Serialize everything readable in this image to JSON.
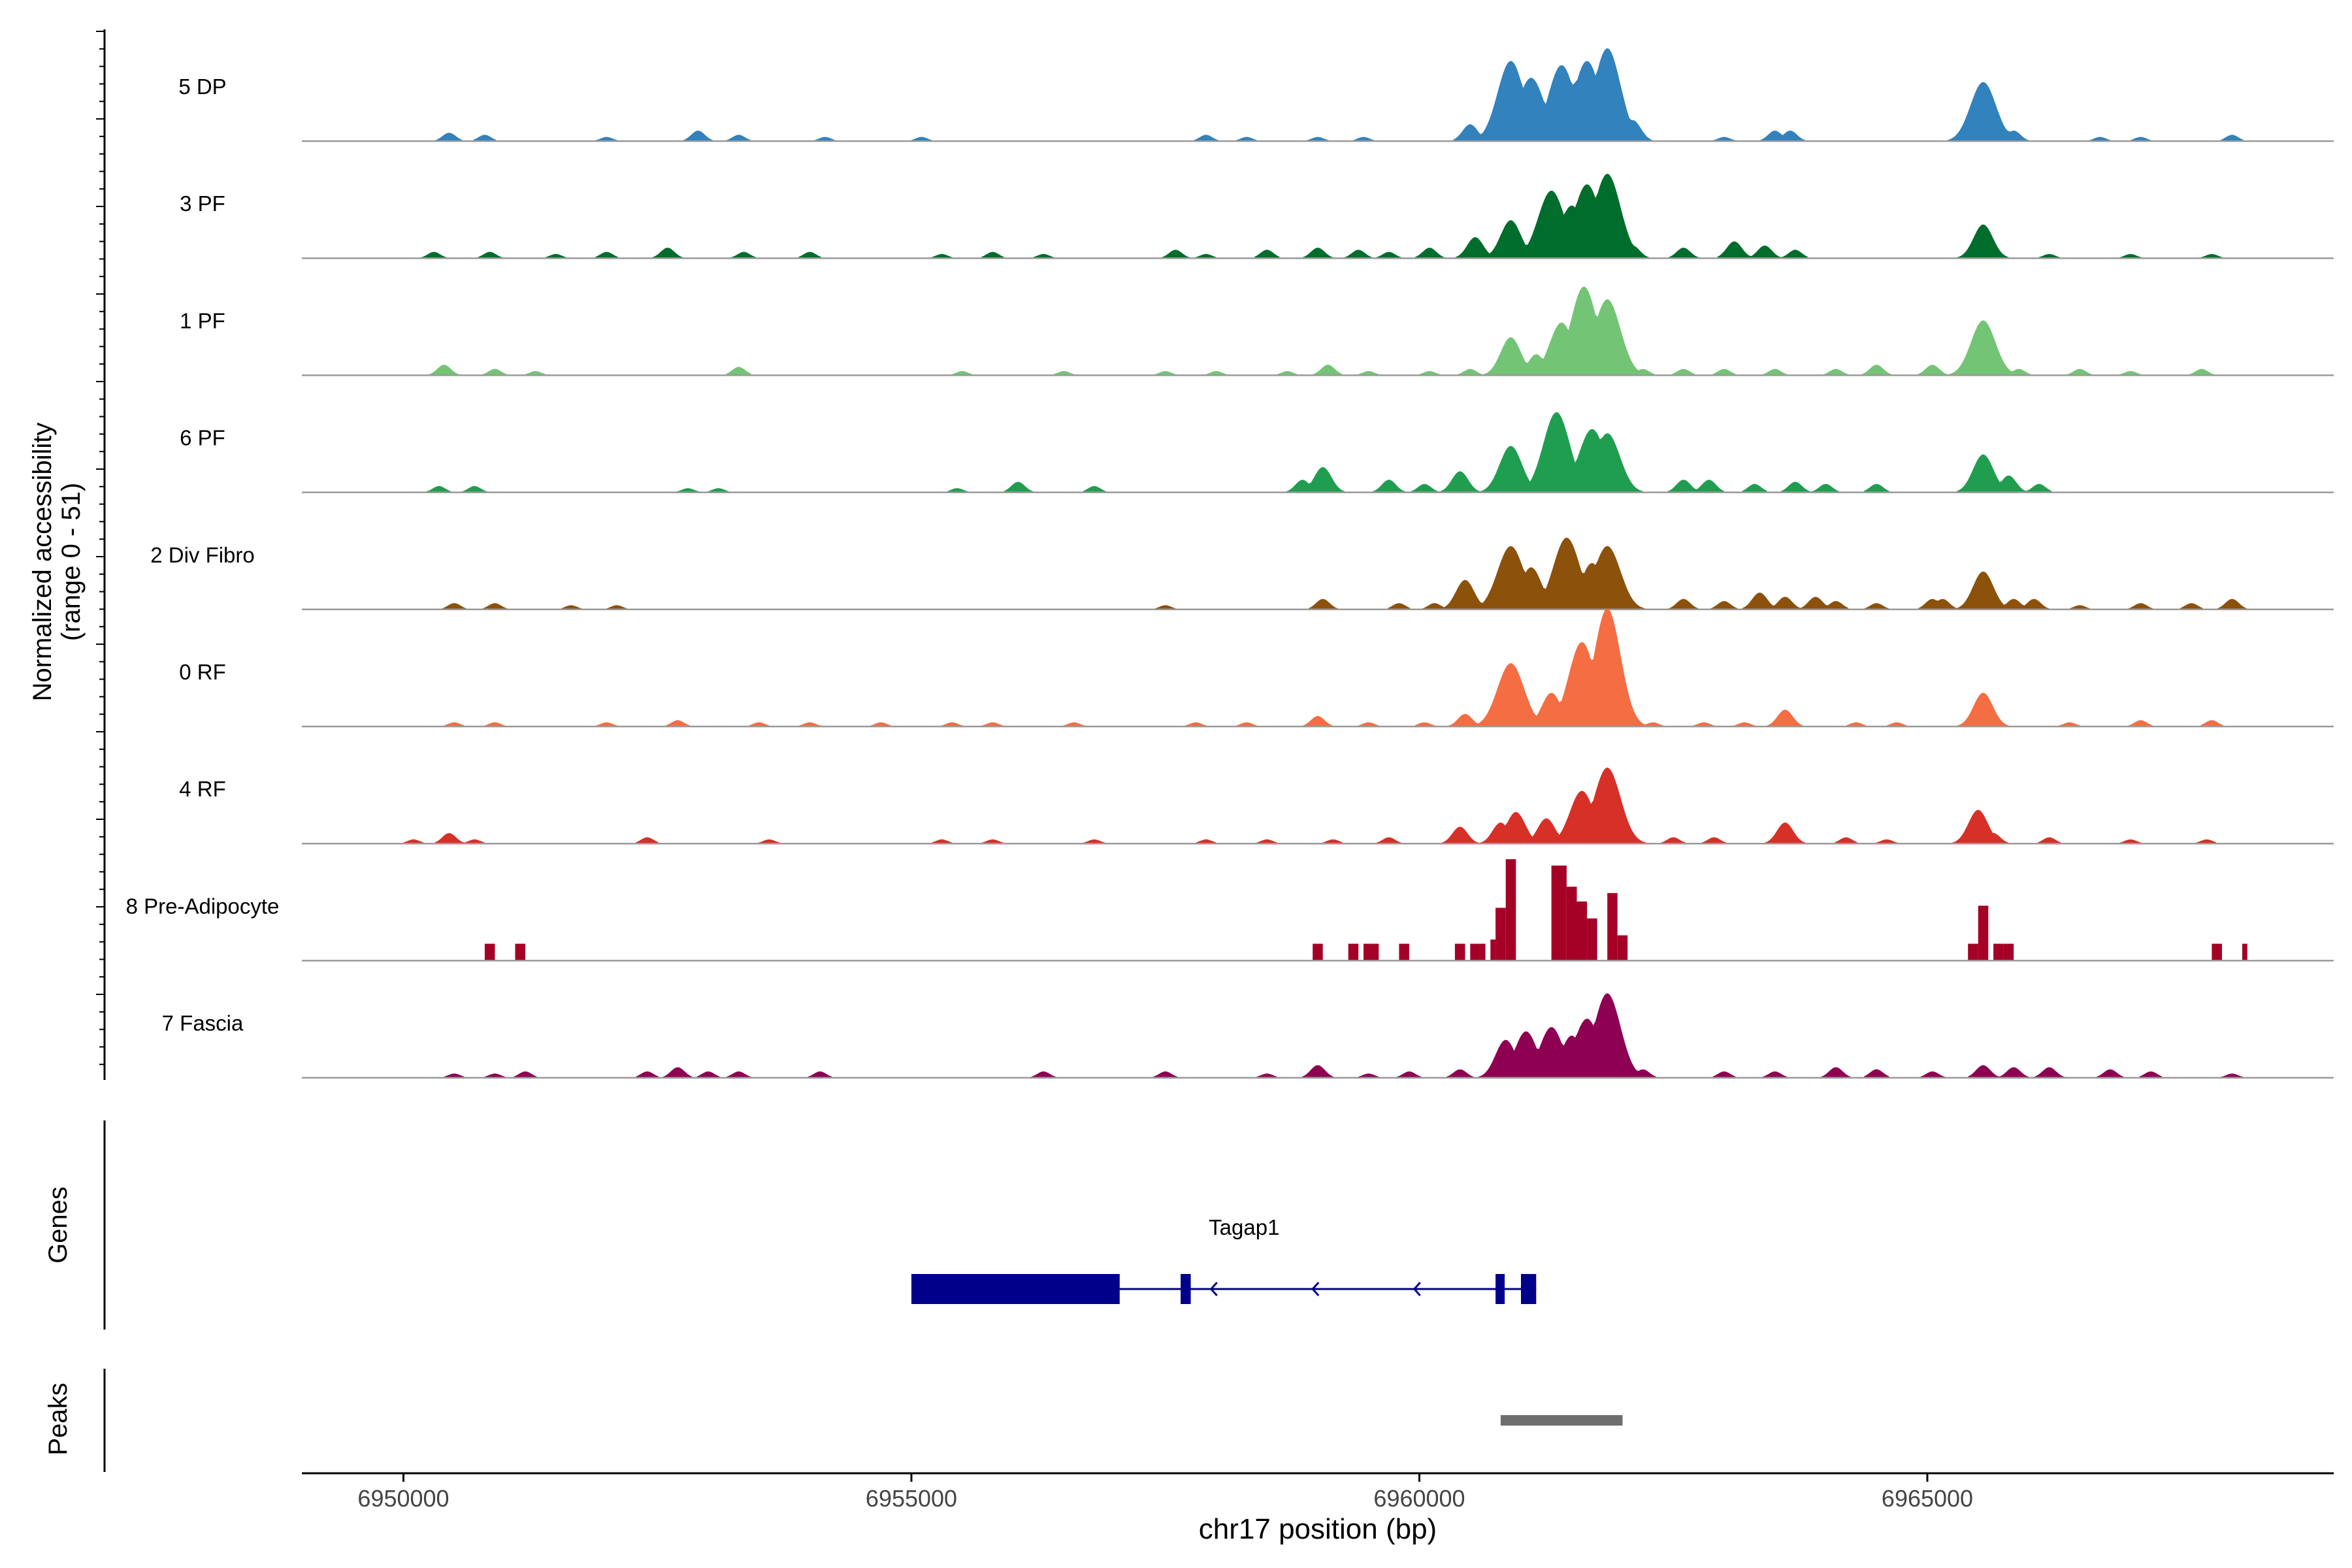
{
  "chart_data": {
    "type": "area",
    "title": "",
    "ylabel_line1": "Normalized accessibility",
    "ylabel_line2": "(range 0 - 51)",
    "ylim": [
      0,
      51
    ],
    "xlabel": "chr17 position (bp)",
    "xlim": [
      6949000,
      6969000
    ],
    "xticks": [
      6950000,
      6955000,
      6960000,
      6965000
    ],
    "xtick_labels": [
      "6950000",
      "6955000",
      "6960000",
      "6965000"
    ],
    "tracks": [
      {
        "name": "5 DP",
        "color": "#3182bd",
        "peaks": [
          [
            6950450,
            4
          ],
          [
            6950800,
            3
          ],
          [
            6952000,
            2
          ],
          [
            6952900,
            5
          ],
          [
            6953300,
            3
          ],
          [
            6954150,
            2
          ],
          [
            6955100,
            2
          ],
          [
            6957900,
            3
          ],
          [
            6958300,
            2
          ],
          [
            6959000,
            2
          ],
          [
            6959450,
            2
          ],
          [
            6960500,
            8
          ],
          [
            6960900,
            38
          ],
          [
            6961100,
            30
          ],
          [
            6961400,
            36
          ],
          [
            6961550,
            28
          ],
          [
            6961650,
            38
          ],
          [
            6961850,
            44
          ],
          [
            6962100,
            10
          ],
          [
            6963000,
            2
          ],
          [
            6963500,
            5
          ],
          [
            6963650,
            5
          ],
          [
            6965550,
            28
          ],
          [
            6965750,
            6
          ],
          [
            6965850,
            5
          ],
          [
            6966700,
            2
          ],
          [
            6967100,
            2
          ],
          [
            6968000,
            3
          ]
        ]
      },
      {
        "name": "3 PF",
        "color": "#006d2c",
        "peaks": [
          [
            6950300,
            3
          ],
          [
            6950850,
            3
          ],
          [
            6951500,
            2
          ],
          [
            6952000,
            3
          ],
          [
            6952600,
            5
          ],
          [
            6953350,
            3
          ],
          [
            6954000,
            3
          ],
          [
            6955300,
            2
          ],
          [
            6955800,
            3
          ],
          [
            6956300,
            2
          ],
          [
            6957600,
            4
          ],
          [
            6957900,
            2
          ],
          [
            6958500,
            4
          ],
          [
            6959000,
            5
          ],
          [
            6959400,
            4
          ],
          [
            6959700,
            3
          ],
          [
            6960100,
            5
          ],
          [
            6960550,
            10
          ],
          [
            6960900,
            18
          ],
          [
            6961300,
            32
          ],
          [
            6961500,
            25
          ],
          [
            6961650,
            35
          ],
          [
            6961850,
            40
          ],
          [
            6962100,
            6
          ],
          [
            6962600,
            5
          ],
          [
            6963100,
            8
          ],
          [
            6963400,
            6
          ],
          [
            6963700,
            4
          ],
          [
            6965550,
            16
          ],
          [
            6966200,
            2
          ],
          [
            6967000,
            2
          ],
          [
            6967800,
            2
          ]
        ]
      },
      {
        "name": "1 PF",
        "color": "#74c476",
        "peaks": [
          [
            6950400,
            5
          ],
          [
            6950900,
            3
          ],
          [
            6951300,
            2
          ],
          [
            6953300,
            4
          ],
          [
            6955500,
            2
          ],
          [
            6956500,
            2
          ],
          [
            6957500,
            2
          ],
          [
            6958000,
            2
          ],
          [
            6958700,
            2
          ],
          [
            6959100,
            5
          ],
          [
            6959500,
            2
          ],
          [
            6960100,
            2
          ],
          [
            6960500,
            3
          ],
          [
            6960900,
            18
          ],
          [
            6961150,
            10
          ],
          [
            6961400,
            25
          ],
          [
            6961620,
            42
          ],
          [
            6961850,
            36
          ],
          [
            6962200,
            3
          ],
          [
            6962600,
            3
          ],
          [
            6963000,
            3
          ],
          [
            6963500,
            3
          ],
          [
            6964100,
            3
          ],
          [
            6964500,
            5
          ],
          [
            6965050,
            5
          ],
          [
            6965550,
            26
          ],
          [
            6965900,
            3
          ],
          [
            6966500,
            3
          ],
          [
            6967000,
            2
          ],
          [
            6967700,
            3
          ]
        ]
      },
      {
        "name": "6 PF",
        "color": "#1f9e50",
        "peaks": [
          [
            6950350,
            3
          ],
          [
            6950700,
            3
          ],
          [
            6952800,
            2
          ],
          [
            6953100,
            2
          ],
          [
            6955450,
            2
          ],
          [
            6956050,
            5
          ],
          [
            6956800,
            3
          ],
          [
            6958850,
            6
          ],
          [
            6959050,
            12
          ],
          [
            6959700,
            6
          ],
          [
            6960050,
            4
          ],
          [
            6960400,
            10
          ],
          [
            6960900,
            22
          ],
          [
            6961350,
            38
          ],
          [
            6961700,
            30
          ],
          [
            6961850,
            28
          ],
          [
            6962600,
            6
          ],
          [
            6962850,
            6
          ],
          [
            6963300,
            4
          ],
          [
            6963700,
            5
          ],
          [
            6964000,
            4
          ],
          [
            6964500,
            4
          ],
          [
            6965550,
            18
          ],
          [
            6965800,
            8
          ],
          [
            6966100,
            4
          ]
        ]
      },
      {
        "name": "2 Div Fibro",
        "color": "#8c510a",
        "peaks": [
          [
            6950500,
            3
          ],
          [
            6950900,
            3
          ],
          [
            6951650,
            2
          ],
          [
            6952100,
            2
          ],
          [
            6957500,
            2
          ],
          [
            6959050,
            5
          ],
          [
            6959800,
            3
          ],
          [
            6960150,
            3
          ],
          [
            6960450,
            14
          ],
          [
            6960900,
            30
          ],
          [
            6961100,
            20
          ],
          [
            6961450,
            34
          ],
          [
            6961700,
            22
          ],
          [
            6961850,
            30
          ],
          [
            6962600,
            5
          ],
          [
            6963000,
            4
          ],
          [
            6963350,
            8
          ],
          [
            6963600,
            6
          ],
          [
            6963900,
            6
          ],
          [
            6964100,
            4
          ],
          [
            6964500,
            3
          ],
          [
            6965050,
            5
          ],
          [
            6965150,
            5
          ],
          [
            6965550,
            18
          ],
          [
            6965850,
            5
          ],
          [
            6966050,
            5
          ],
          [
            6966500,
            2
          ],
          [
            6967100,
            3
          ],
          [
            6967600,
            3
          ],
          [
            6968000,
            5
          ]
        ]
      },
      {
        "name": "0 RF",
        "color": "#f46d43",
        "peaks": [
          [
            6950500,
            2
          ],
          [
            6950900,
            2
          ],
          [
            6952000,
            2
          ],
          [
            6952700,
            3
          ],
          [
            6953500,
            2
          ],
          [
            6954000,
            2
          ],
          [
            6954700,
            2
          ],
          [
            6955400,
            2
          ],
          [
            6955800,
            2
          ],
          [
            6956600,
            2
          ],
          [
            6957800,
            2
          ],
          [
            6958300,
            2
          ],
          [
            6959000,
            5
          ],
          [
            6959500,
            2
          ],
          [
            6960050,
            2
          ],
          [
            6960450,
            6
          ],
          [
            6960900,
            30
          ],
          [
            6961300,
            16
          ],
          [
            6961600,
            40
          ],
          [
            6961850,
            56
          ],
          [
            6962300,
            2
          ],
          [
            6962800,
            2
          ],
          [
            6963200,
            2
          ],
          [
            6963600,
            8
          ],
          [
            6964300,
            2
          ],
          [
            6964700,
            2
          ],
          [
            6965550,
            16
          ],
          [
            6966400,
            2
          ],
          [
            6967100,
            3
          ],
          [
            6967800,
            3
          ]
        ]
      },
      {
        "name": "4 RF",
        "color": "#d73027",
        "peaks": [
          [
            6950100,
            2
          ],
          [
            6950450,
            5
          ],
          [
            6950700,
            2
          ],
          [
            6952400,
            3
          ],
          [
            6953600,
            2
          ],
          [
            6955300,
            2
          ],
          [
            6955800,
            2
          ],
          [
            6956800,
            2
          ],
          [
            6957900,
            2
          ],
          [
            6958500,
            2
          ],
          [
            6959150,
            2
          ],
          [
            6959700,
            3
          ],
          [
            6960400,
            8
          ],
          [
            6960800,
            10
          ],
          [
            6960950,
            15
          ],
          [
            6961250,
            12
          ],
          [
            6961600,
            25
          ],
          [
            6961850,
            36
          ],
          [
            6962500,
            3
          ],
          [
            6962900,
            3
          ],
          [
            6963600,
            10
          ],
          [
            6964200,
            3
          ],
          [
            6964600,
            2
          ],
          [
            6965500,
            16
          ],
          [
            6965650,
            5
          ],
          [
            6966200,
            3
          ],
          [
            6967000,
            2
          ],
          [
            6967750,
            2
          ]
        ]
      },
      {
        "name": "8 Pre-Adipocyte",
        "color": "#a50026",
        "blocks": [
          [
            6950800,
            6950900,
            8
          ],
          [
            6951100,
            6951200,
            8
          ],
          [
            6958950,
            6959050,
            8
          ],
          [
            6959300,
            6959400,
            8
          ],
          [
            6959450,
            6959600,
            8
          ],
          [
            6959800,
            6959900,
            8
          ],
          [
            6960350,
            6960450,
            8
          ],
          [
            6960500,
            6960650,
            8
          ],
          [
            6960700,
            6960750,
            10
          ],
          [
            6960750,
            6960850,
            25
          ],
          [
            6960850,
            6960950,
            48
          ],
          [
            6961300,
            6961450,
            45
          ],
          [
            6961450,
            6961550,
            35
          ],
          [
            6961550,
            6961650,
            28
          ],
          [
            6961650,
            6961750,
            20
          ],
          [
            6961850,
            6961950,
            32
          ],
          [
            6961950,
            6962050,
            12
          ],
          [
            6965400,
            6965500,
            8
          ],
          [
            6965500,
            6965600,
            26
          ],
          [
            6965650,
            6965750,
            8
          ],
          [
            6965750,
            6965850,
            8
          ],
          [
            6967800,
            6967900,
            8
          ],
          [
            6968100,
            6968150,
            8
          ]
        ]
      },
      {
        "name": "7 Fascia",
        "color": "#8e0152",
        "peaks": [
          [
            6950500,
            2
          ],
          [
            6950900,
            2
          ],
          [
            6951200,
            3
          ],
          [
            6952400,
            3
          ],
          [
            6952700,
            5
          ],
          [
            6953000,
            3
          ],
          [
            6953300,
            3
          ],
          [
            6954100,
            3
          ],
          [
            6956300,
            3
          ],
          [
            6957500,
            3
          ],
          [
            6958500,
            2
          ],
          [
            6959000,
            6
          ],
          [
            6959500,
            2
          ],
          [
            6959900,
            3
          ],
          [
            6960400,
            4
          ],
          [
            6960850,
            18
          ],
          [
            6961050,
            22
          ],
          [
            6961300,
            24
          ],
          [
            6961500,
            20
          ],
          [
            6961650,
            28
          ],
          [
            6961850,
            40
          ],
          [
            6962200,
            4
          ],
          [
            6963000,
            3
          ],
          [
            6963500,
            3
          ],
          [
            6964100,
            5
          ],
          [
            6964500,
            4
          ],
          [
            6965050,
            3
          ],
          [
            6965550,
            6
          ],
          [
            6965850,
            5
          ],
          [
            6966200,
            5
          ],
          [
            6966800,
            4
          ],
          [
            6967200,
            3
          ],
          [
            6968000,
            2
          ]
        ]
      }
    ],
    "genes": [
      {
        "name": "Tagap1",
        "strand": "-",
        "start": 6955000,
        "end": 6961150,
        "exons": [
          [
            6955000,
            6957050
          ],
          [
            6957650,
            6957750
          ],
          [
            6960750,
            6960800
          ],
          [
            6961000,
            6961150
          ]
        ],
        "thick_exon": [
          6955000,
          6957050
        ]
      }
    ],
    "peaks_track": [
      [
        6960800,
        6962000
      ]
    ],
    "panel_labels": [
      "Genes",
      "Peaks"
    ],
    "colors": {
      "gene": "#00008b",
      "peak": "#6e6e6e",
      "baseline": "#9a9a9a"
    }
  }
}
